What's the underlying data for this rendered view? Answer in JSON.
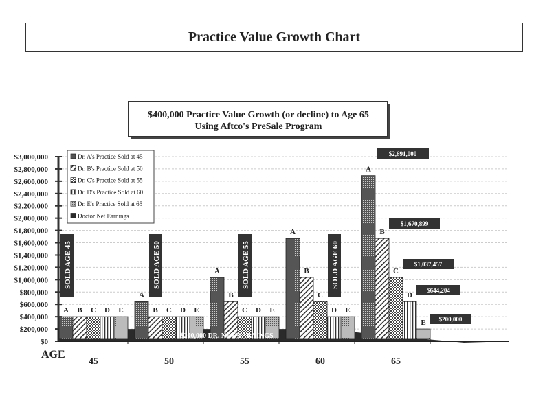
{
  "page_title": "Practice Value Growth Chart",
  "chart_data": {
    "type": "bar",
    "title": [
      "$400,000 Practice Value Growth (or decline) to Age 65",
      "Using Aftco's PreSale Program"
    ],
    "xlabel": "AGE",
    "categories": [
      "45",
      "50",
      "55",
      "60",
      "65"
    ],
    "bar_labels": [
      "A",
      "B",
      "C",
      "D",
      "E"
    ],
    "ylim": [
      0,
      3000000
    ],
    "yticks": [
      "$3,000,000",
      "$2,800,000",
      "$2,600,000",
      "$2,400,000",
      "$2,200,000",
      "$2,000,000",
      "$1,800,000",
      "$1,600,000",
      "$1,400,000",
      "$1,200,000",
      "$1,000,000",
      "$800,000",
      "$600,000",
      "$400,000",
      "$200,000",
      "$0"
    ],
    "grid": true,
    "legend_position": "top-left",
    "series": [
      {
        "name": "Dr. A's Practice Sold at 45",
        "values": [
          400000,
          644204,
          1037457,
          1670899,
          2691000
        ]
      },
      {
        "name": "Dr. B's Practice Sold at 50",
        "values": [
          400000,
          400000,
          644204,
          1037457,
          1670899
        ]
      },
      {
        "name": "Dr. C's Practice Sold at 55",
        "values": [
          400000,
          400000,
          400000,
          644204,
          1037457
        ]
      },
      {
        "name": "Dr. D's Practice Sold at 60",
        "values": [
          400000,
          400000,
          400000,
          400000,
          644204
        ]
      },
      {
        "name": "Dr. E's Practice Sold at 65",
        "values": [
          400000,
          400000,
          400000,
          400000,
          200000
        ]
      },
      {
        "name": "Doctor Net Earnings",
        "area": true,
        "values": [
          200000,
          200000,
          200000,
          150000,
          60000
        ]
      }
    ],
    "earnings_label": "$200,000 DR. NET EARNINGS",
    "sold_labels": [
      "SOLD AGE 45",
      "SOLD AGE 50",
      "SOLD AGE 55",
      "SOLD AGE 60"
    ],
    "value_callouts": [
      "$2,691,000",
      "$1,670,899",
      "$1,037,457",
      "$644,204",
      "$200,000"
    ]
  }
}
